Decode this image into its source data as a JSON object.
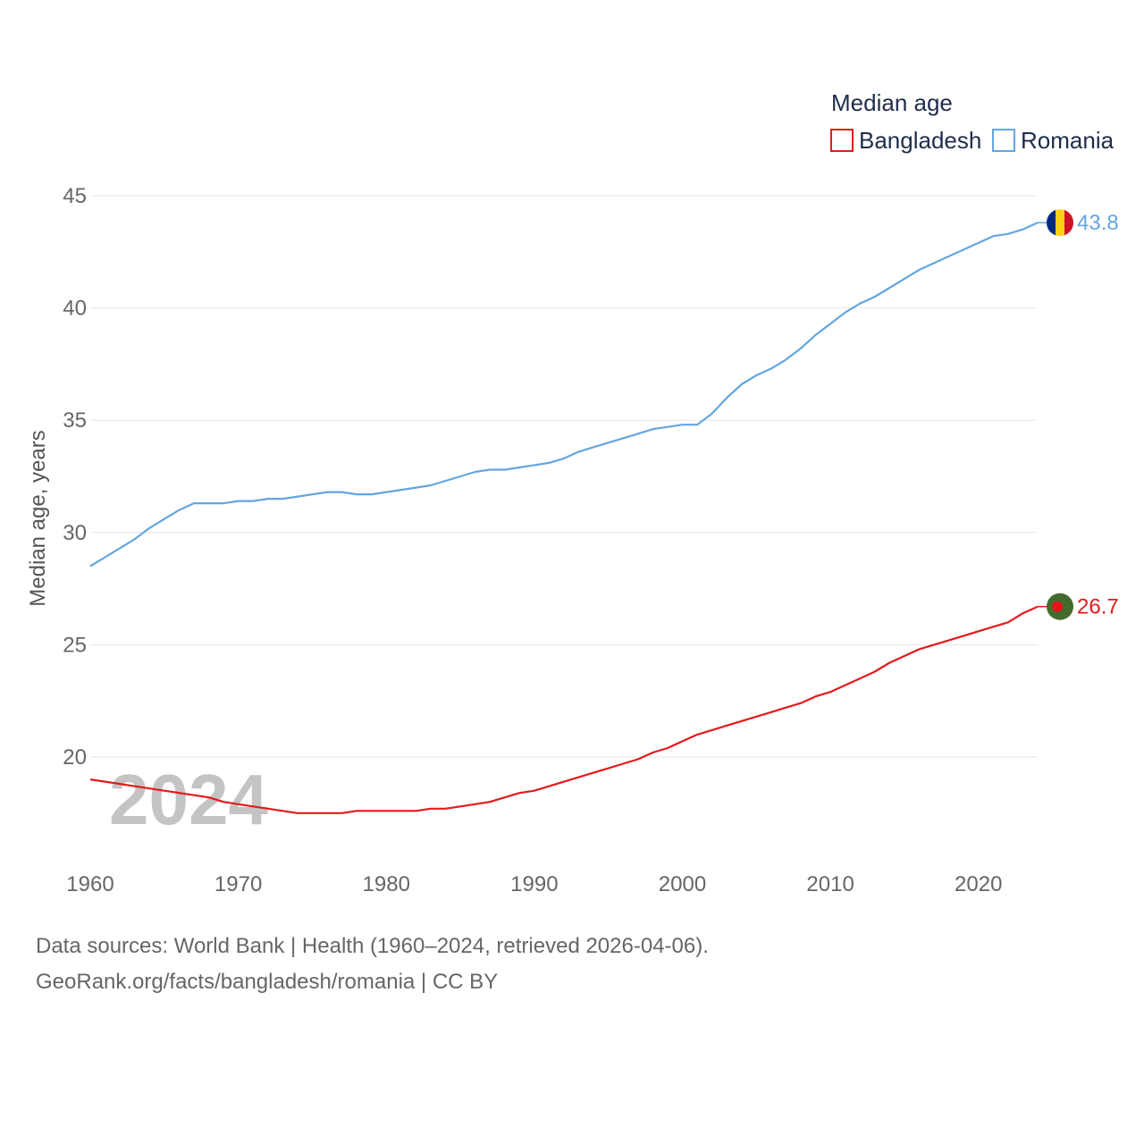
{
  "chart_data": {
    "type": "line",
    "legend_title": "Median age",
    "ylabel": "Median age, years",
    "xlabel": "",
    "xlim": [
      1960,
      2024
    ],
    "ylim": [
      16,
      45
    ],
    "yticks": [
      20,
      25,
      30,
      35,
      40,
      45
    ],
    "xticks": [
      1960,
      1970,
      1980,
      1990,
      2000,
      2010,
      2020
    ],
    "year_watermark": "2024",
    "x": [
      1960,
      1961,
      1962,
      1963,
      1964,
      1965,
      1966,
      1967,
      1968,
      1969,
      1970,
      1971,
      1972,
      1973,
      1974,
      1975,
      1976,
      1977,
      1978,
      1979,
      1980,
      1981,
      1982,
      1983,
      1984,
      1985,
      1986,
      1987,
      1988,
      1989,
      1990,
      1991,
      1992,
      1993,
      1994,
      1995,
      1996,
      1997,
      1998,
      1999,
      2000,
      2001,
      2002,
      2003,
      2004,
      2005,
      2006,
      2007,
      2008,
      2009,
      2010,
      2011,
      2012,
      2013,
      2014,
      2015,
      2016,
      2017,
      2018,
      2019,
      2020,
      2021,
      2022,
      2023,
      2024
    ],
    "series": [
      {
        "name": "Bangladesh",
        "color": "#e31a1c",
        "end_label": "26.7",
        "values": [
          19.0,
          18.9,
          18.8,
          18.7,
          18.6,
          18.5,
          18.4,
          18.3,
          18.2,
          18.0,
          17.9,
          17.8,
          17.7,
          17.6,
          17.5,
          17.5,
          17.5,
          17.5,
          17.6,
          17.6,
          17.6,
          17.6,
          17.6,
          17.7,
          17.7,
          17.8,
          17.9,
          18.0,
          18.2,
          18.4,
          18.5,
          18.7,
          18.9,
          19.1,
          19.3,
          19.5,
          19.7,
          19.9,
          20.2,
          20.4,
          20.7,
          21.0,
          21.2,
          21.4,
          21.6,
          21.8,
          22.0,
          22.2,
          22.4,
          22.7,
          22.9,
          23.2,
          23.5,
          23.8,
          24.2,
          24.5,
          24.8,
          25.0,
          25.2,
          25.4,
          25.6,
          25.8,
          26.0,
          26.4,
          26.7
        ]
      },
      {
        "name": "Romania",
        "color": "#64a6e0",
        "end_label": "43.8",
        "values": [
          28.5,
          28.9,
          29.3,
          29.7,
          30.2,
          30.6,
          31.0,
          31.3,
          31.3,
          31.3,
          31.4,
          31.4,
          31.5,
          31.5,
          31.6,
          31.7,
          31.8,
          31.8,
          31.7,
          31.7,
          31.8,
          31.9,
          32.0,
          32.1,
          32.3,
          32.5,
          32.7,
          32.8,
          32.8,
          32.9,
          33.0,
          33.1,
          33.3,
          33.6,
          33.8,
          34.0,
          34.2,
          34.4,
          34.6,
          34.7,
          34.8,
          34.8,
          35.3,
          36.0,
          36.6,
          37.0,
          37.3,
          37.7,
          38.2,
          38.8,
          39.3,
          39.8,
          40.2,
          40.5,
          40.9,
          41.3,
          41.7,
          42.0,
          42.3,
          42.6,
          42.9,
          43.2,
          43.3,
          43.5,
          43.8
        ]
      }
    ]
  },
  "footer": {
    "line1": "Data sources: World Bank | Health (1960–2024, retrieved 2026-04-06).",
    "line2": "GeoRank.org/facts/bangladesh/romania | CC BY"
  },
  "colors": {
    "grid": "#e6e6e6",
    "romania_flag": [
      "#002b7f",
      "#fcd116",
      "#ce1126"
    ],
    "bangladesh_flag": [
      "#446b2e",
      "#e3141c"
    ]
  }
}
